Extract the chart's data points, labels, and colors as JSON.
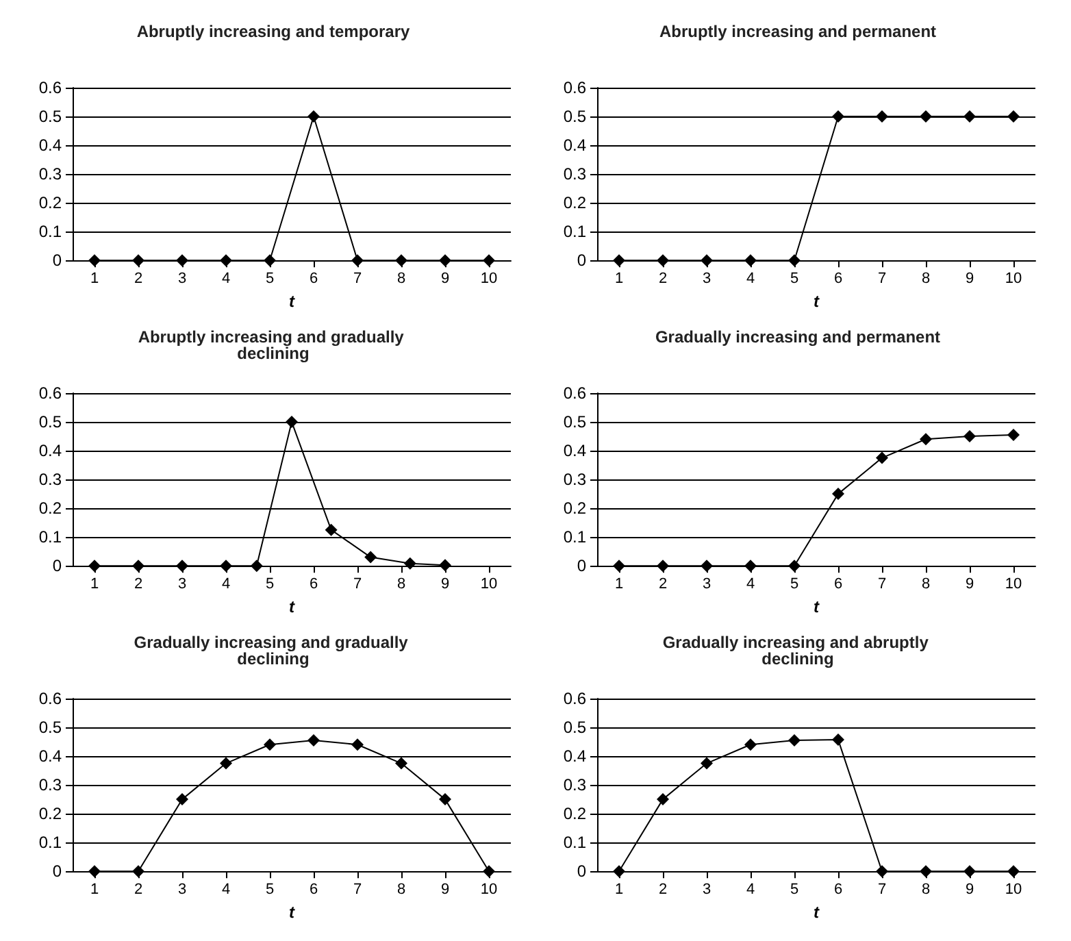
{
  "chart_data": [
    {
      "type": "line",
      "title": "Abruptly increasing and temporary",
      "xlabel": "t",
      "x": [
        1,
        2,
        3,
        4,
        5,
        6,
        7,
        8,
        9,
        10
      ],
      "values": [
        0,
        0,
        0,
        0,
        0,
        0.5,
        0,
        0,
        0,
        0
      ],
      "color": "#000000",
      "marker": "diamond",
      "grid": "y",
      "xlim": [
        0.5,
        10.5
      ],
      "xticks": [
        1,
        2,
        3,
        4,
        5,
        6,
        7,
        8,
        9,
        10
      ],
      "ylim": [
        0,
        0.6
      ],
      "yticks": [
        0,
        0.1,
        0.2,
        0.3,
        0.4,
        0.5,
        0.6
      ]
    },
    {
      "type": "line",
      "title": "Abruptly increasing and permanent",
      "xlabel": "t",
      "x": [
        1,
        2,
        3,
        4,
        5,
        6,
        7,
        8,
        9,
        10
      ],
      "values": [
        0,
        0,
        0,
        0,
        0,
        0.5,
        0.5,
        0.5,
        0.5,
        0.5
      ],
      "color": "#000000",
      "marker": "diamond",
      "grid": "y",
      "xlim": [
        0.5,
        10.5
      ],
      "xticks": [
        1,
        2,
        3,
        4,
        5,
        6,
        7,
        8,
        9,
        10
      ],
      "ylim": [
        0,
        0.6
      ],
      "yticks": [
        0,
        0.1,
        0.2,
        0.3,
        0.4,
        0.5,
        0.6
      ]
    },
    {
      "type": "line",
      "title": "Abruptly increasing and gradually declining",
      "xlabel": "t",
      "x": [
        1,
        2,
        3,
        4,
        4.7,
        5.5,
        6.4,
        7.3,
        8.2,
        9
      ],
      "values": [
        0,
        0,
        0,
        0,
        0,
        0.5,
        0.125,
        0.03,
        0.008,
        0.002
      ],
      "color": "#000000",
      "marker": "diamond",
      "grid": "y",
      "xlim": [
        0.5,
        10.5
      ],
      "xticks": [
        1,
        2,
        3,
        4,
        5,
        6,
        7,
        8,
        9,
        10
      ],
      "ylim": [
        0,
        0.6
      ],
      "yticks": [
        0,
        0.1,
        0.2,
        0.3,
        0.4,
        0.5,
        0.6
      ]
    },
    {
      "type": "line",
      "title": "Gradually increasing and permanent",
      "xlabel": "t",
      "x": [
        1,
        2,
        3,
        4,
        5,
        6,
        7,
        8,
        9,
        10
      ],
      "values": [
        0,
        0,
        0,
        0,
        0,
        0.25,
        0.375,
        0.44,
        0.45,
        0.455
      ],
      "color": "#000000",
      "marker": "diamond",
      "grid": "y",
      "xlim": [
        0.5,
        10.5
      ],
      "xticks": [
        1,
        2,
        3,
        4,
        5,
        6,
        7,
        8,
        9,
        10
      ],
      "ylim": [
        0,
        0.6
      ],
      "yticks": [
        0,
        0.1,
        0.2,
        0.3,
        0.4,
        0.5,
        0.6
      ]
    },
    {
      "type": "line",
      "title": "Gradually increasing and gradually declining",
      "xlabel": "t",
      "x": [
        1,
        2,
        3,
        4,
        5,
        6,
        7,
        8,
        9,
        10
      ],
      "values": [
        0,
        0,
        0.25,
        0.375,
        0.44,
        0.455,
        0.44,
        0.375,
        0.25,
        0
      ],
      "color": "#000000",
      "marker": "diamond",
      "grid": "y",
      "xlim": [
        0.5,
        10.5
      ],
      "xticks": [
        1,
        2,
        3,
        4,
        5,
        6,
        7,
        8,
        9,
        10
      ],
      "ylim": [
        0,
        0.6
      ],
      "yticks": [
        0,
        0.1,
        0.2,
        0.3,
        0.4,
        0.5,
        0.6
      ]
    },
    {
      "type": "line",
      "title": "Gradually increasing and abruptly declining",
      "xlabel": "t",
      "x": [
        1,
        2,
        3,
        4,
        5,
        6,
        7,
        8,
        9,
        10
      ],
      "values": [
        0,
        0.25,
        0.375,
        0.44,
        0.455,
        0.457,
        0,
        0,
        0,
        0
      ],
      "color": "#000000",
      "marker": "diamond",
      "grid": "y",
      "xlim": [
        0.5,
        10.5
      ],
      "xticks": [
        1,
        2,
        3,
        4,
        5,
        6,
        7,
        8,
        9,
        10
      ],
      "ylim": [
        0,
        0.6
      ],
      "yticks": [
        0,
        0.1,
        0.2,
        0.3,
        0.4,
        0.5,
        0.6
      ]
    }
  ]
}
